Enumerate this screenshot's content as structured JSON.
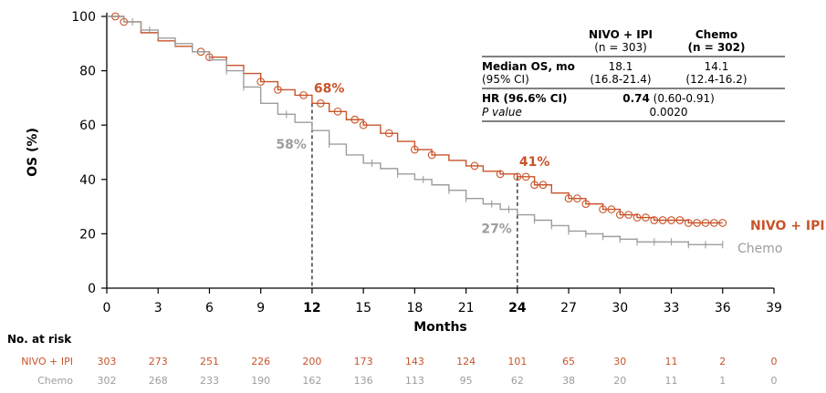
{
  "colors": {
    "nivo": "#c8542a",
    "chemo": "#9d9d9d",
    "axis": "#000000",
    "text": "#000000"
  },
  "chart_data": {
    "type": "line",
    "title": "",
    "xlabel": "Months",
    "ylabel": "OS (%)",
    "xlim": [
      0,
      39
    ],
    "ylim": [
      0,
      100
    ],
    "xticks": [
      0,
      3,
      6,
      9,
      12,
      15,
      18,
      21,
      24,
      27,
      30,
      33,
      36,
      39
    ],
    "yticks": [
      0,
      20,
      40,
      60,
      80,
      100
    ],
    "grid": false,
    "series": [
      {
        "name": "NIVO + IPI",
        "color": "#c8542a",
        "x": [
          0,
          1,
          2,
          3,
          4,
          5,
          6,
          7,
          8,
          9,
          10,
          11,
          12,
          13,
          14,
          15,
          16,
          17,
          18,
          19,
          20,
          21,
          22,
          23,
          24,
          25,
          26,
          27,
          28,
          29,
          30,
          31,
          32,
          33,
          34,
          35,
          36
        ],
        "y": [
          100,
          98,
          94,
          91,
          89,
          87,
          85,
          82,
          79,
          76,
          73,
          71,
          68,
          65,
          62,
          60,
          57,
          54,
          51,
          49,
          47,
          45,
          43,
          42,
          41,
          38,
          35,
          33,
          31,
          29,
          27,
          26,
          25,
          25,
          24,
          24,
          24
        ],
        "censor_x": [
          0.5,
          1,
          5.5,
          6,
          9,
          10,
          11.5,
          12.5,
          13.5,
          14.5,
          15,
          16.5,
          18,
          19,
          21.5,
          23,
          24,
          24.5,
          25,
          25.5,
          27,
          27.5,
          28,
          29,
          29.5,
          30,
          30.5,
          31,
          31.5,
          32,
          32.5,
          33,
          33.5,
          34,
          34.5,
          35,
          35.5,
          36
        ]
      },
      {
        "name": "Chemo",
        "color": "#9d9d9d",
        "x": [
          0,
          1,
          2,
          3,
          4,
          5,
          6,
          7,
          8,
          9,
          10,
          11,
          12,
          13,
          14,
          15,
          16,
          17,
          18,
          19,
          20,
          21,
          22,
          23,
          24,
          25,
          26,
          27,
          28,
          29,
          30,
          31,
          32,
          33,
          34,
          35,
          36
        ],
        "y": [
          100,
          98,
          95,
          92,
          90,
          87,
          84,
          80,
          74,
          68,
          64,
          61,
          58,
          53,
          49,
          46,
          44,
          42,
          40,
          38,
          36,
          33,
          31,
          29,
          27,
          25,
          23,
          21,
          20,
          19,
          18,
          17,
          17,
          17,
          16,
          16,
          16
        ],
        "censor_x": [
          1.5,
          2.5,
          4,
          7,
          8,
          10.5,
          13,
          15.5,
          17,
          18.5,
          20,
          21,
          22.5,
          23.5,
          25,
          26,
          27,
          28,
          29,
          30,
          31,
          32,
          33,
          34,
          35,
          36
        ]
      }
    ],
    "landmarks": [
      {
        "x": 12,
        "label": "12",
        "nivo_pct": "68%",
        "chemo_pct": "58%",
        "nivo_y": 68,
        "chemo_y": 58
      },
      {
        "x": 24,
        "label": "24",
        "nivo_pct": "41%",
        "chemo_pct": "27%",
        "nivo_y": 41,
        "chemo_y": 27
      }
    ],
    "end_labels": {
      "nivo": "NIVO + IPI",
      "chemo": "Chemo"
    },
    "legend_table": {
      "col1_header": [
        "NIVO + IPI",
        "(n = 303)"
      ],
      "col2_header": [
        "Chemo",
        "(n = 302)"
      ],
      "rows": [
        {
          "label": "Median OS, mo",
          "sub": "(95% CI)",
          "v1": "18.1",
          "v1_sub": "(16.8-21.4)",
          "v2": "14.1",
          "v2_sub": "(12.4-16.2)"
        },
        {
          "label": "HR (96.6% CI)",
          "merged": "0.74 (0.60-0.91)"
        },
        {
          "label": "P value",
          "merged": "0.0020"
        }
      ]
    },
    "at_risk": {
      "title": "No. at risk",
      "rows": [
        {
          "label": "NIVO + IPI",
          "values": [
            "303",
            "273",
            "251",
            "226",
            "200",
            "173",
            "143",
            "124",
            "101",
            "65",
            "30",
            "11",
            "2",
            "0"
          ]
        },
        {
          "label": "Chemo",
          "values": [
            "302",
            "268",
            "233",
            "190",
            "162",
            "136",
            "113",
            "95",
            "62",
            "38",
            "20",
            "11",
            "1",
            "0"
          ]
        }
      ]
    }
  }
}
